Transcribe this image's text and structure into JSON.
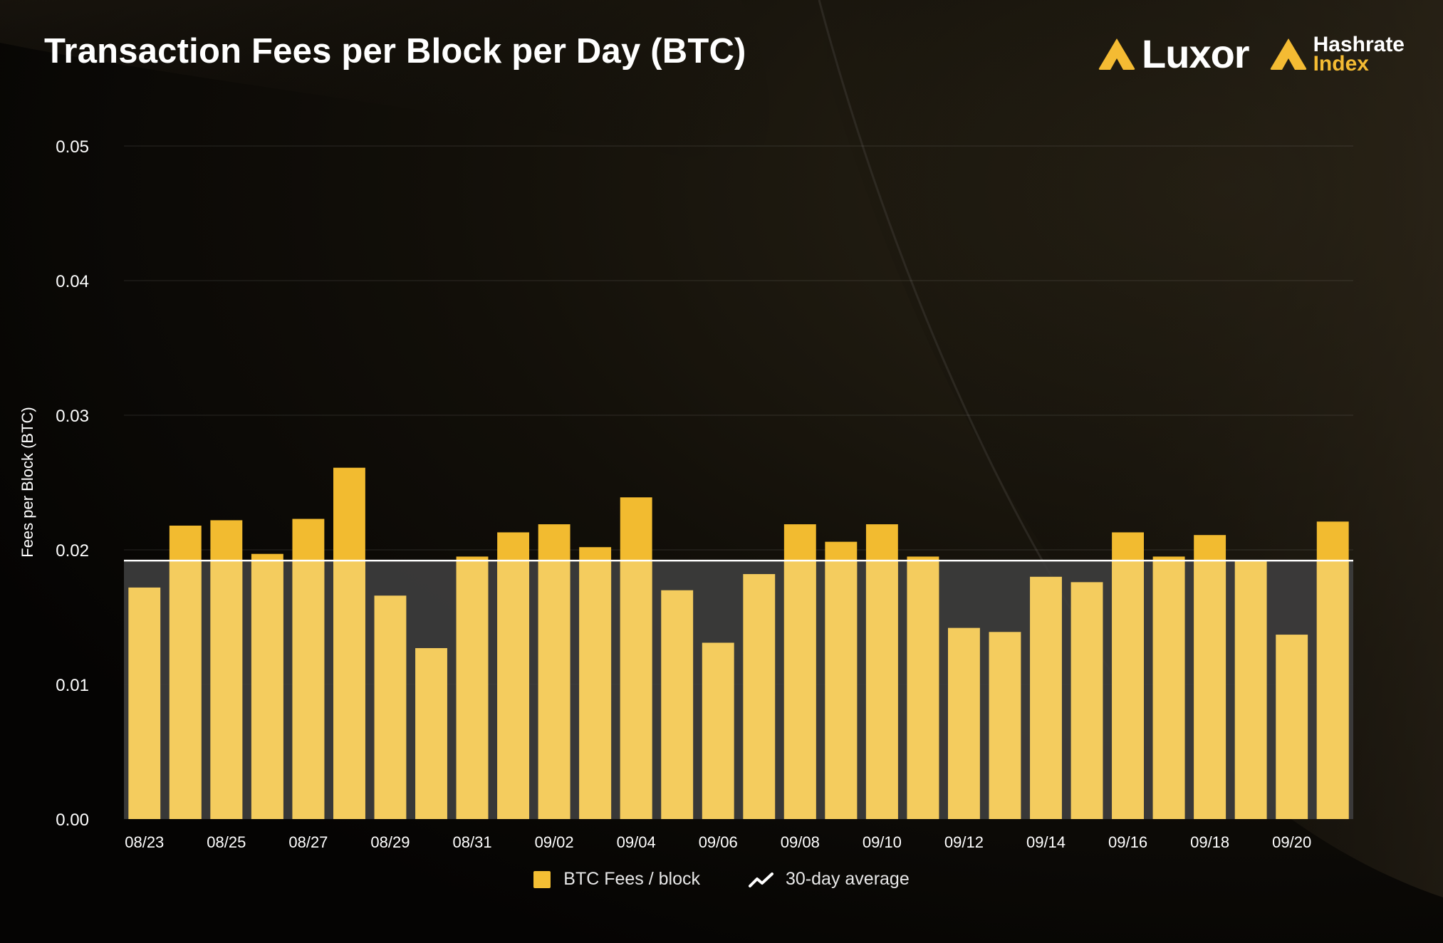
{
  "title": "Transaction Fees per Block per Day (BTC)",
  "logos": {
    "luxor": "Luxor",
    "hashrate_line1": "Hashrate",
    "hashrate_line2": "Index"
  },
  "colors": {
    "bar": "#f4cc5e",
    "bar_above_avg": "#f2bb30",
    "average_line": "#ffffff",
    "average_band": "#3d3d3d",
    "accent": "#f4bb33"
  },
  "legend": {
    "bars": "BTC Fees / block",
    "line": "30-day average"
  },
  "chart_data": {
    "type": "bar",
    "title": "Transaction Fees per Block per Day (BTC)",
    "xlabel": "",
    "ylabel": "Fees per Block (BTC)",
    "ylim": [
      0,
      0.05
    ],
    "yticks": [
      "0.00",
      "0.01",
      "0.02",
      "0.03",
      "0.04",
      "0.05"
    ],
    "x_tick_labels": [
      "08/23",
      "08/25",
      "08/27",
      "08/29",
      "08/31",
      "09/02",
      "09/04",
      "09/06",
      "09/08",
      "09/10",
      "09/12",
      "09/14",
      "09/16",
      "09/18",
      "09/20"
    ],
    "categories": [
      "08/23",
      "08/24",
      "08/25",
      "08/26",
      "08/27",
      "08/28",
      "08/29",
      "08/30",
      "08/31",
      "09/01",
      "09/02",
      "09/03",
      "09/04",
      "09/05",
      "09/06",
      "09/07",
      "09/08",
      "09/09",
      "09/10",
      "09/11",
      "09/12",
      "09/13",
      "09/14",
      "09/15",
      "09/16",
      "09/17",
      "09/18",
      "09/19",
      "09/20",
      "09/21"
    ],
    "series": [
      {
        "name": "BTC Fees / block",
        "values": [
          0.0172,
          0.0218,
          0.0222,
          0.0197,
          0.0223,
          0.0261,
          0.0166,
          0.0127,
          0.0195,
          0.0213,
          0.0219,
          0.0202,
          0.0239,
          0.017,
          0.0131,
          0.0182,
          0.0219,
          0.0206,
          0.0219,
          0.0195,
          0.0142,
          0.0139,
          0.018,
          0.0176,
          0.0213,
          0.0195,
          0.0211,
          0.0192,
          0.0137,
          0.0221
        ]
      }
    ],
    "average": {
      "name": "30-day average",
      "value": 0.0192
    },
    "grid": true,
    "legend_position": "bottom-center"
  }
}
